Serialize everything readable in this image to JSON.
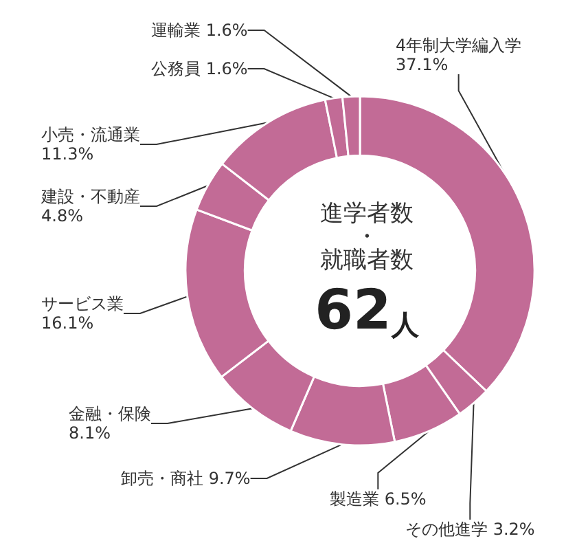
{
  "chart_data": {
    "type": "donut",
    "title": "進学者数・就職者数",
    "subtitle": "62人",
    "categories": [
      "4年制大学編入学",
      "その他進学",
      "製造業",
      "卸売・商社",
      "金融・保険",
      "サービス業",
      "建設・不動産",
      "小売・流通業",
      "公務員",
      "運輸業"
    ],
    "values": [
      37.1,
      3.2,
      6.5,
      9.7,
      8.1,
      16.1,
      4.8,
      11.3,
      1.6,
      1.6
    ],
    "value_labels": [
      "37.1%",
      "3.2%",
      "6.5%",
      "9.7%",
      "8.1%",
      "16.1%",
      "4.8%",
      "11.3%",
      "1.6%",
      "1.6%"
    ],
    "colors": [
      "#c26b96",
      "#c26b96",
      "#c26b96",
      "#c26b96",
      "#c26b96",
      "#c26b96",
      "#c26b96",
      "#c26b96",
      "#c26b96",
      "#c26b96"
    ],
    "legend": false
  }
}
